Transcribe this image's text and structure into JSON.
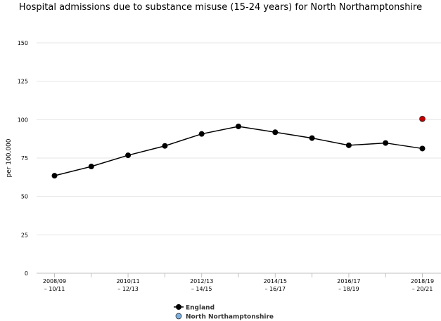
{
  "chart_data": {
    "type": "line",
    "title": "Hospital admissions due to substance misuse (15-24 years) for North Northamptonshire",
    "ylabel": "per 100,000",
    "xlabel": "",
    "ylim": [
      0,
      150
    ],
    "yticks": [
      0,
      25,
      50,
      75,
      100,
      125,
      150
    ],
    "grid": true,
    "legend_position": "bottom",
    "x": [
      "2008/09 - 10/11",
      "2009/10 - 11/12",
      "2010/11 - 12/13",
      "2011/12 - 13/14",
      "2012/13 - 14/15",
      "2013/14 - 15/16",
      "2014/15 - 16/17",
      "2015/16 - 17/18",
      "2016/17 - 18/19",
      "2017/18 - 19/20",
      "2018/19 - 20/21"
    ],
    "x_tick_labels": [
      {
        "index": 0,
        "line1": "2008/09",
        "line2": "– 10/11"
      },
      {
        "index": 2,
        "line1": "2010/11",
        "line2": "– 12/13"
      },
      {
        "index": 4,
        "line1": "2012/13",
        "line2": "– 14/15"
      },
      {
        "index": 6,
        "line1": "2014/15",
        "line2": "– 16/17"
      },
      {
        "index": 8,
        "line1": "2016/17",
        "line2": "– 18/19"
      },
      {
        "index": 10,
        "line1": "2018/19",
        "line2": "– 20/21"
      }
    ],
    "series": [
      {
        "name": "England",
        "color": "#000000",
        "line": true,
        "values": [
          63.5,
          69.5,
          76.8,
          82.9,
          90.7,
          95.6,
          91.8,
          88.0,
          83.3,
          84.8,
          81.2
        ]
      },
      {
        "name": "North Northamptonshire",
        "color": "#7ab0e0",
        "line": false,
        "values": [
          null,
          null,
          null,
          null,
          null,
          null,
          null,
          null,
          null,
          null,
          100.5
        ],
        "point_colors": [
          null,
          null,
          null,
          null,
          null,
          null,
          null,
          null,
          null,
          null,
          "#c00000"
        ]
      }
    ]
  }
}
